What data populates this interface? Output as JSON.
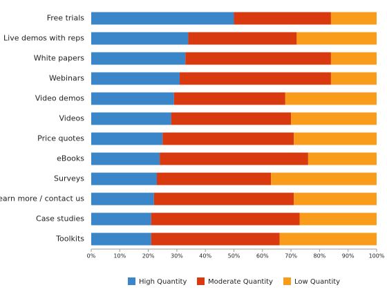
{
  "chart_data": {
    "type": "stacked-bar-horizontal",
    "categories": [
      "Free trials",
      "Live demos with reps",
      "White papers",
      "Webinars",
      "Video demos",
      "Videos",
      "Price quotes",
      "eBooks",
      "Surveys",
      "Learn more / contact us",
      "Case studies",
      "Toolkits"
    ],
    "series": [
      {
        "name": "High Quantity",
        "color": "#3a86c8",
        "values": [
          50,
          34,
          33,
          31,
          29,
          28,
          25,
          24,
          23,
          22,
          21,
          21
        ]
      },
      {
        "name": "Moderate Quantity",
        "color": "#d9390e",
        "values": [
          34,
          38,
          51,
          53,
          39,
          42,
          46,
          52,
          40,
          49,
          52,
          45
        ]
      },
      {
        "name": "Low Quantity",
        "color": "#f99c1c",
        "values": [
          16,
          28,
          16,
          16,
          32,
          30,
          29,
          24,
          37,
          29,
          27,
          34
        ]
      }
    ],
    "xlim": [
      0,
      100
    ],
    "xticks": [
      {
        "value": 0,
        "label": "0%"
      },
      {
        "value": 10,
        "label": "10%"
      },
      {
        "value": 20,
        "label": "20%"
      },
      {
        "value": 30,
        "label": "30%"
      },
      {
        "value": 40,
        "label": "40%"
      },
      {
        "value": 50,
        "label": "50%"
      },
      {
        "value": 60,
        "label": "60%"
      },
      {
        "value": 70,
        "label": "70%"
      },
      {
        "value": 80,
        "label": "80%"
      },
      {
        "value": 90,
        "label": "90%"
      },
      {
        "value": 100,
        "label": "100%"
      }
    ],
    "legend": "bottom"
  }
}
